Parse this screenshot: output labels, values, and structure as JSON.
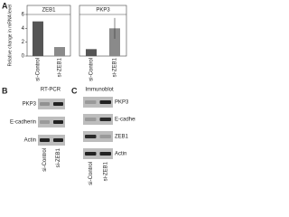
{
  "chart_data": [
    {
      "type": "bar",
      "title": "ZEB1",
      "ylabel": "Relative change in mRNA level",
      "categories": [
        "si-Control",
        "si-ZEB1"
      ],
      "values": [
        5,
        1.3
      ],
      "colors": [
        "#555555",
        "#8a8a8a"
      ],
      "ylim": [
        0,
        6
      ],
      "yticks": [
        0,
        2,
        4,
        6
      ]
    },
    {
      "type": "bar",
      "title": "PKP3",
      "categories": [
        "si-Control",
        "si-ZEB1"
      ],
      "values": [
        1,
        4
      ],
      "errors": [
        null,
        1.5
      ],
      "colors": [
        "#555555",
        "#8a8a8a"
      ],
      "ylim": [
        0,
        6
      ]
    }
  ],
  "panels": {
    "a": {
      "label": "A"
    },
    "b": {
      "label": "B",
      "title": "RT-PCR",
      "rows": [
        "PKP3",
        "E-cadherin",
        "Actin"
      ],
      "columns": [
        "si-Control",
        "si-ZEB1"
      ]
    },
    "c": {
      "label": "C",
      "title": "Immunoblot",
      "rows": [
        "PKP3",
        "E-cadherin",
        "ZEB1",
        "Actin"
      ],
      "columns": [
        "si-Control",
        "si-ZEB1"
      ]
    }
  }
}
